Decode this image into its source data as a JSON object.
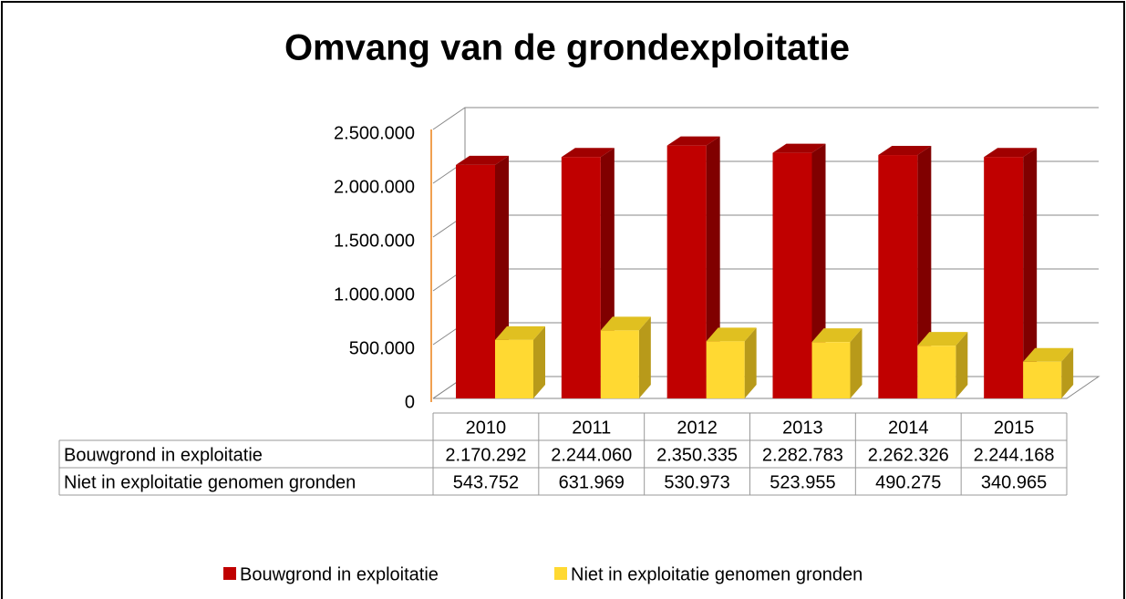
{
  "chart_data": {
    "type": "bar3d",
    "title": "Omvang van de grondexploitatie",
    "categories": [
      "2010",
      "2011",
      "2012",
      "2013",
      "2014",
      "2015"
    ],
    "series": [
      {
        "name": "Bouwgrond in exploitatie",
        "color": "#c00000",
        "values": [
          2170292,
          2244060,
          2350335,
          2282783,
          2262326,
          2244168
        ],
        "value_labels": [
          "2.170.292",
          "2.244.060",
          "2.350.335",
          "2.282.783",
          "2.262.326",
          "2.244.168"
        ]
      },
      {
        "name": "Niet in exploitatie genomen gronden",
        "color": "#ffd932",
        "values": [
          543752,
          631969,
          530973,
          523955,
          490275,
          340965
        ],
        "value_labels": [
          "543.752",
          "631.969",
          "530.973",
          "523.955",
          "490.275",
          "340.965"
        ]
      }
    ],
    "ylim": [
      0,
      2500000
    ],
    "yticks": [
      0,
      {
        "value": 500000,
        "label": "500.000"
      },
      {
        "value": 1000000,
        "label": "1.000.000"
      },
      {
        "value": 1500000,
        "label": "1.500.000"
      },
      {
        "value": 2000000,
        "label": "2.000.000"
      },
      {
        "value": 2500000,
        "label": "2.500.000"
      }
    ],
    "grid": true
  }
}
